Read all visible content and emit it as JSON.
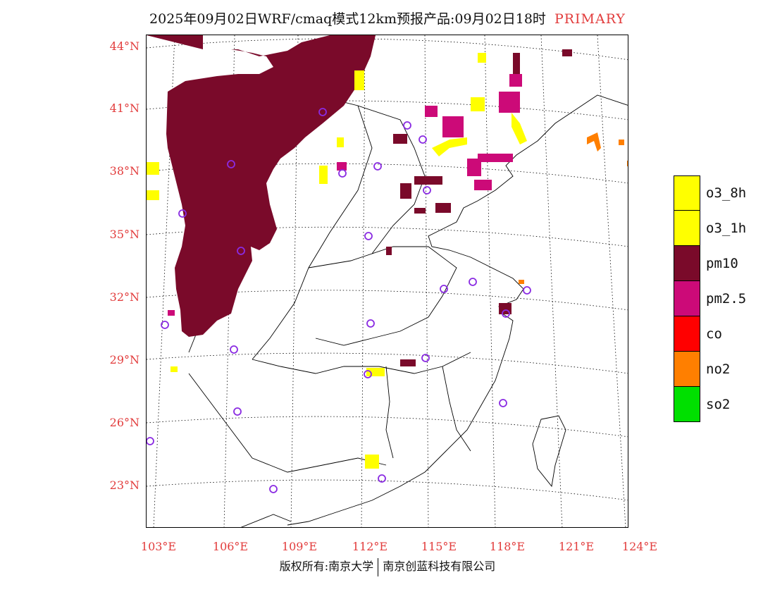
{
  "title": {
    "text": "2025年09月02日WRF/cmaq模式12km预报产品:09月02日18时",
    "tag": "PRIMARY"
  },
  "lat_labels": [
    {
      "text": "44°N",
      "lat": 44
    },
    {
      "text": "41°N",
      "lat": 41
    },
    {
      "text": "38°N",
      "lat": 38
    },
    {
      "text": "35°N",
      "lat": 35
    },
    {
      "text": "32°N",
      "lat": 32
    },
    {
      "text": "29°N",
      "lat": 29
    },
    {
      "text": "26°N",
      "lat": 26
    },
    {
      "text": "23°N",
      "lat": 23
    }
  ],
  "lon_labels": [
    {
      "text": "103°E",
      "lon": 103
    },
    {
      "text": "106°E",
      "lon": 106
    },
    {
      "text": "109°E",
      "lon": 109
    },
    {
      "text": "112°E",
      "lon": 112
    },
    {
      "text": "115°E",
      "lon": 115
    },
    {
      "text": "118°E",
      "lon": 118
    },
    {
      "text": "121°E",
      "lon": 121
    },
    {
      "text": "124°E",
      "lon": 124
    }
  ],
  "legend": [
    {
      "label": "o3_8h",
      "color": "#ffff00"
    },
    {
      "label": "o3_1h",
      "color": "#ffff00"
    },
    {
      "label": "pm10",
      "color": "#7a0a2a"
    },
    {
      "label": "pm2.5",
      "color": "#cc0a78"
    },
    {
      "label": "co",
      "color": "#ff0000"
    },
    {
      "label": "no2",
      "color": "#ff7f00"
    },
    {
      "label": "so2",
      "color": "#00e000"
    }
  ],
  "colors": {
    "pm10": "#7a0a2a",
    "pm25": "#cc0a78",
    "o3": "#ffff00",
    "no2": "#ff7f00",
    "co": "#ff0000",
    "station_marker": "#8a2be2",
    "label_red": "#e23c3c"
  },
  "copyright": {
    "left": "版权所有:南京大学",
    "right": "南京创蓝科技有限公司"
  }
}
